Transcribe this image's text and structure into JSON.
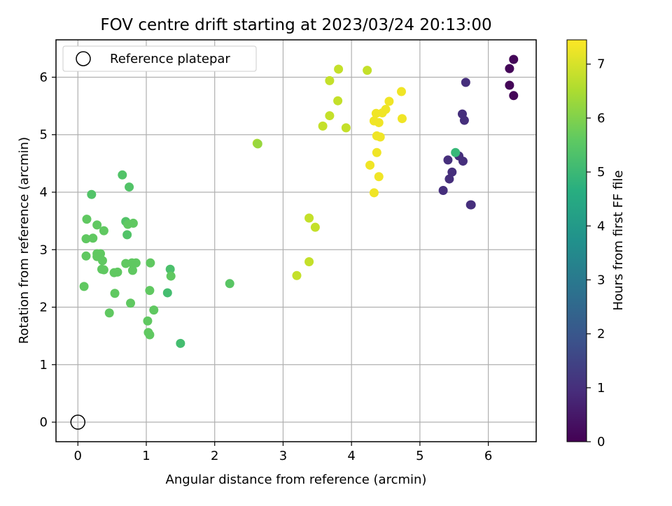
{
  "chart_data": {
    "type": "scatter",
    "title": "FOV centre drift starting at 2023/03/24 20:13:00",
    "xlabel": "Angular distance from reference (arcmin)",
    "ylabel": "Rotation from reference (arcmin)",
    "xlim": [
      -0.32,
      6.7
    ],
    "ylim": [
      -0.34,
      6.65
    ],
    "xticks": [
      "0",
      "1",
      "2",
      "3",
      "4",
      "5",
      "6"
    ],
    "yticks": [
      "0",
      "1",
      "2",
      "3",
      "4",
      "5",
      "6"
    ],
    "grid": true,
    "legend": {
      "position": "top-left",
      "entries": [
        "Reference platepar"
      ]
    },
    "reference_point": {
      "x": 0,
      "y": 0
    },
    "colorbar": {
      "label": "Hours from first FF file",
      "range": [
        0,
        7.45
      ],
      "ticks": [
        "0",
        "1",
        "2",
        "3",
        "4",
        "5",
        "6",
        "7"
      ],
      "colormap": "viridis"
    },
    "points": [
      {
        "x": 6.37,
        "y": 6.31,
        "c": 0.1
      },
      {
        "x": 6.31,
        "y": 6.15,
        "c": 0.1
      },
      {
        "x": 6.31,
        "y": 5.86,
        "c": 0.1
      },
      {
        "x": 6.37,
        "y": 5.68,
        "c": 0.1
      },
      {
        "x": 5.67,
        "y": 5.91,
        "c": 1.0
      },
      {
        "x": 5.62,
        "y": 5.36,
        "c": 1.0
      },
      {
        "x": 5.65,
        "y": 5.25,
        "c": 1.0
      },
      {
        "x": 5.41,
        "y": 4.56,
        "c": 1.0
      },
      {
        "x": 5.63,
        "y": 4.54,
        "c": 1.0
      },
      {
        "x": 5.47,
        "y": 4.35,
        "c": 1.0
      },
      {
        "x": 5.43,
        "y": 4.23,
        "c": 1.0
      },
      {
        "x": 5.34,
        "y": 4.03,
        "c": 1.0
      },
      {
        "x": 5.75,
        "y": 3.78,
        "c": 1.0
      },
      {
        "x": 5.74,
        "y": 3.78,
        "c": 1.0
      },
      {
        "x": 5.57,
        "y": 4.63,
        "c": 1.0
      },
      {
        "x": 5.52,
        "y": 4.69,
        "c": 5.0
      },
      {
        "x": 0.65,
        "y": 4.3,
        "c": 5.4
      },
      {
        "x": 0.2,
        "y": 3.96,
        "c": 5.4
      },
      {
        "x": 0.75,
        "y": 4.09,
        "c": 5.4
      },
      {
        "x": 0.13,
        "y": 3.53,
        "c": 5.6
      },
      {
        "x": 0.28,
        "y": 3.43,
        "c": 5.6
      },
      {
        "x": 0.7,
        "y": 3.49,
        "c": 5.4
      },
      {
        "x": 0.81,
        "y": 3.46,
        "c": 5.6
      },
      {
        "x": 0.73,
        "y": 3.44,
        "c": 5.6
      },
      {
        "x": 0.38,
        "y": 3.33,
        "c": 5.6
      },
      {
        "x": 0.72,
        "y": 3.26,
        "c": 5.4
      },
      {
        "x": 0.12,
        "y": 3.19,
        "c": 5.6
      },
      {
        "x": 0.22,
        "y": 3.2,
        "c": 5.6
      },
      {
        "x": 0.12,
        "y": 2.89,
        "c": 5.6
      },
      {
        "x": 0.28,
        "y": 2.93,
        "c": 5.6
      },
      {
        "x": 0.33,
        "y": 2.93,
        "c": 5.6
      },
      {
        "x": 0.28,
        "y": 2.88,
        "c": 5.6
      },
      {
        "x": 0.36,
        "y": 2.81,
        "c": 5.6
      },
      {
        "x": 0.35,
        "y": 2.66,
        "c": 5.6
      },
      {
        "x": 0.38,
        "y": 2.65,
        "c": 5.6
      },
      {
        "x": 0.7,
        "y": 2.76,
        "c": 5.6
      },
      {
        "x": 0.79,
        "y": 2.77,
        "c": 5.6
      },
      {
        "x": 0.85,
        "y": 2.77,
        "c": 5.6
      },
      {
        "x": 1.06,
        "y": 2.77,
        "c": 5.6
      },
      {
        "x": 0.8,
        "y": 2.64,
        "c": 5.6
      },
      {
        "x": 0.53,
        "y": 2.6,
        "c": 5.6
      },
      {
        "x": 0.58,
        "y": 2.61,
        "c": 5.6
      },
      {
        "x": 1.35,
        "y": 2.66,
        "c": 5.3
      },
      {
        "x": 1.36,
        "y": 2.54,
        "c": 5.6
      },
      {
        "x": 0.09,
        "y": 2.36,
        "c": 5.6
      },
      {
        "x": 0.54,
        "y": 2.24,
        "c": 5.6
      },
      {
        "x": 1.05,
        "y": 2.29,
        "c": 5.6
      },
      {
        "x": 1.31,
        "y": 2.25,
        "c": 5.2
      },
      {
        "x": 0.77,
        "y": 2.07,
        "c": 5.6
      },
      {
        "x": 1.11,
        "y": 1.95,
        "c": 5.6
      },
      {
        "x": 0.46,
        "y": 1.9,
        "c": 5.6
      },
      {
        "x": 1.02,
        "y": 1.76,
        "c": 5.6
      },
      {
        "x": 1.03,
        "y": 1.56,
        "c": 5.6
      },
      {
        "x": 1.05,
        "y": 1.52,
        "c": 5.6
      },
      {
        "x": 1.5,
        "y": 1.37,
        "c": 5.2
      },
      {
        "x": 2.22,
        "y": 2.41,
        "c": 5.5
      },
      {
        "x": 2.62,
        "y": 4.85,
        "c": 6.6
      },
      {
        "x": 2.63,
        "y": 4.84,
        "c": 6.3
      },
      {
        "x": 3.38,
        "y": 3.55,
        "c": 6.8
      },
      {
        "x": 3.47,
        "y": 3.39,
        "c": 6.8
      },
      {
        "x": 3.38,
        "y": 2.79,
        "c": 6.8
      },
      {
        "x": 3.2,
        "y": 2.55,
        "c": 6.8
      },
      {
        "x": 3.81,
        "y": 6.14,
        "c": 6.8
      },
      {
        "x": 3.68,
        "y": 5.94,
        "c": 6.8
      },
      {
        "x": 3.8,
        "y": 5.59,
        "c": 6.8
      },
      {
        "x": 3.68,
        "y": 5.33,
        "c": 6.8
      },
      {
        "x": 3.58,
        "y": 5.15,
        "c": 6.8
      },
      {
        "x": 3.92,
        "y": 5.12,
        "c": 6.8
      },
      {
        "x": 4.23,
        "y": 6.12,
        "c": 6.8
      },
      {
        "x": 4.55,
        "y": 5.58,
        "c": 7.3
      },
      {
        "x": 4.73,
        "y": 5.75,
        "c": 7.3
      },
      {
        "x": 4.5,
        "y": 5.44,
        "c": 7.3
      },
      {
        "x": 4.45,
        "y": 5.38,
        "c": 7.3
      },
      {
        "x": 4.36,
        "y": 5.37,
        "c": 7.3
      },
      {
        "x": 4.33,
        "y": 5.24,
        "c": 7.3
      },
      {
        "x": 4.4,
        "y": 5.21,
        "c": 7.3
      },
      {
        "x": 4.74,
        "y": 5.28,
        "c": 7.3
      },
      {
        "x": 4.37,
        "y": 4.98,
        "c": 7.3
      },
      {
        "x": 4.42,
        "y": 4.96,
        "c": 7.3
      },
      {
        "x": 4.37,
        "y": 4.69,
        "c": 7.3
      },
      {
        "x": 4.27,
        "y": 4.47,
        "c": 7.3
      },
      {
        "x": 4.4,
        "y": 4.27,
        "c": 7.3
      },
      {
        "x": 4.33,
        "y": 3.99,
        "c": 7.3
      }
    ]
  }
}
